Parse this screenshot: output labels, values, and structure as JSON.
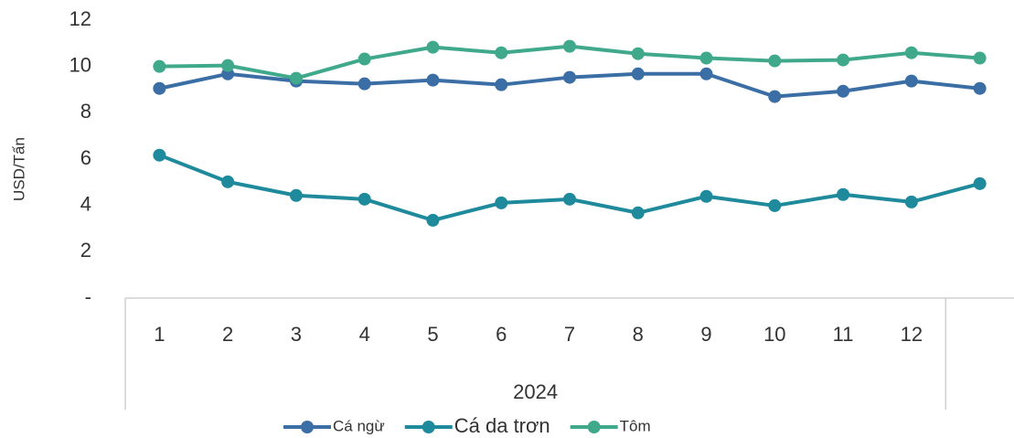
{
  "chart_data": {
    "type": "line",
    "y_label": "USD/Tấn",
    "x_group_label": "2024",
    "categories": [
      "1",
      "2",
      "3",
      "4",
      "5",
      "6",
      "7",
      "8",
      "9",
      "10",
      "11",
      "12",
      null
    ],
    "series": [
      {
        "name": "Cá ngừ",
        "color": "#3a6ea5",
        "values": [
          9.05,
          9.68,
          9.37,
          9.25,
          9.41,
          9.21,
          9.53,
          9.68,
          9.68,
          8.7,
          8.93,
          9.37,
          9.05
        ]
      },
      {
        "name": "Cá da trơn",
        "color": "#1e8a9c",
        "values": [
          6.17,
          5.02,
          4.43,
          4.27,
          3.36,
          4.11,
          4.27,
          3.68,
          4.39,
          3.99,
          4.47,
          4.15,
          4.94
        ]
      },
      {
        "name": "Tôm",
        "color": "#40a98c",
        "values": [
          10.0,
          10.04,
          9.49,
          10.32,
          10.83,
          10.59,
          10.87,
          10.55,
          10.36,
          10.24,
          10.28,
          10.59,
          10.36
        ]
      }
    ],
    "ylim": [
      0,
      12
    ],
    "yticks": [
      {
        "value": 0,
        "label": "-"
      },
      2,
      4,
      6,
      8,
      10,
      12
    ],
    "grid": false,
    "legend": "bottom"
  }
}
